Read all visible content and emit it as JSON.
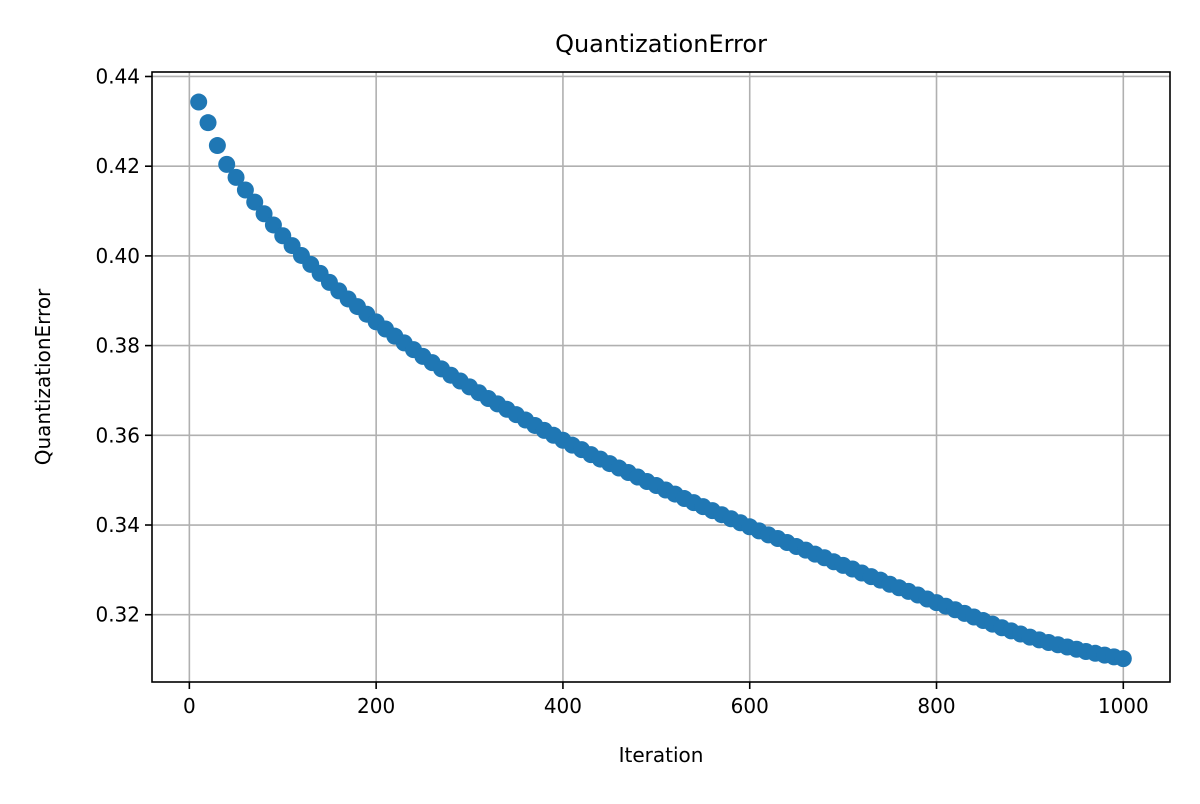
{
  "chart_data": {
    "type": "scatter",
    "title": "QuantizationError",
    "xlabel": "Iteration",
    "ylabel": "QuantizationError",
    "xlim": [
      -40,
      1050
    ],
    "ylim": [
      0.305,
      0.441
    ],
    "xticks": [
      0,
      200,
      400,
      600,
      800,
      1000
    ],
    "xtick_labels": [
      "0",
      "200",
      "400",
      "600",
      "800",
      "1000"
    ],
    "yticks": [
      0.32,
      0.34,
      0.36,
      0.38,
      0.4,
      0.42,
      0.44
    ],
    "ytick_labels": [
      "0.32",
      "0.34",
      "0.36",
      "0.38",
      "0.40",
      "0.42",
      "0.44"
    ],
    "grid": true,
    "series": [
      {
        "color": "#1f77b4",
        "x": [
          10,
          20,
          30,
          40,
          50,
          60,
          70,
          80,
          90,
          100,
          110,
          120,
          130,
          140,
          150,
          160,
          170,
          180,
          190,
          200,
          210,
          220,
          230,
          240,
          250,
          260,
          270,
          280,
          290,
          300,
          310,
          320,
          330,
          340,
          350,
          360,
          370,
          380,
          390,
          400,
          410,
          420,
          430,
          440,
          450,
          460,
          470,
          480,
          490,
          500,
          510,
          520,
          530,
          540,
          550,
          560,
          570,
          580,
          590,
          600,
          610,
          620,
          630,
          640,
          650,
          660,
          670,
          680,
          690,
          700,
          710,
          720,
          730,
          740,
          750,
          760,
          770,
          780,
          790,
          800,
          810,
          820,
          830,
          840,
          850,
          860,
          870,
          880,
          890,
          900,
          910,
          920,
          930,
          940,
          950,
          960,
          970,
          980,
          990,
          1000
        ],
        "y": [
          0.4343,
          0.4297,
          0.4246,
          0.4204,
          0.4175,
          0.4147,
          0.412,
          0.4094,
          0.4069,
          0.4045,
          0.4023,
          0.4001,
          0.3981,
          0.3961,
          0.3941,
          0.3922,
          0.3904,
          0.3887,
          0.387,
          0.3853,
          0.3837,
          0.3821,
          0.3806,
          0.3791,
          0.3776,
          0.3762,
          0.3748,
          0.3734,
          0.3721,
          0.3708,
          0.3695,
          0.3682,
          0.367,
          0.3658,
          0.3646,
          0.3634,
          0.3622,
          0.3611,
          0.36,
          0.3589,
          0.3578,
          0.3568,
          0.3557,
          0.3547,
          0.3537,
          0.3527,
          0.3517,
          0.3507,
          0.3497,
          0.3488,
          0.3478,
          0.3469,
          0.3459,
          0.345,
          0.3441,
          0.3432,
          0.3423,
          0.3414,
          0.3405,
          0.3396,
          0.3387,
          0.3378,
          0.337,
          0.3361,
          0.3352,
          0.3344,
          0.3335,
          0.3327,
          0.3318,
          0.331,
          0.3302,
          0.3293,
          0.3285,
          0.3277,
          0.3268,
          0.326,
          0.3252,
          0.3244,
          0.3235,
          0.3227,
          0.3219,
          0.3211,
          0.3203,
          0.3195,
          0.3187,
          0.3179,
          0.3171,
          0.3164,
          0.3157,
          0.315,
          0.3144,
          0.3138,
          0.3133,
          0.3128,
          0.3123,
          0.3118,
          0.3114,
          0.311,
          0.3106,
          0.3102
        ]
      }
    ]
  }
}
